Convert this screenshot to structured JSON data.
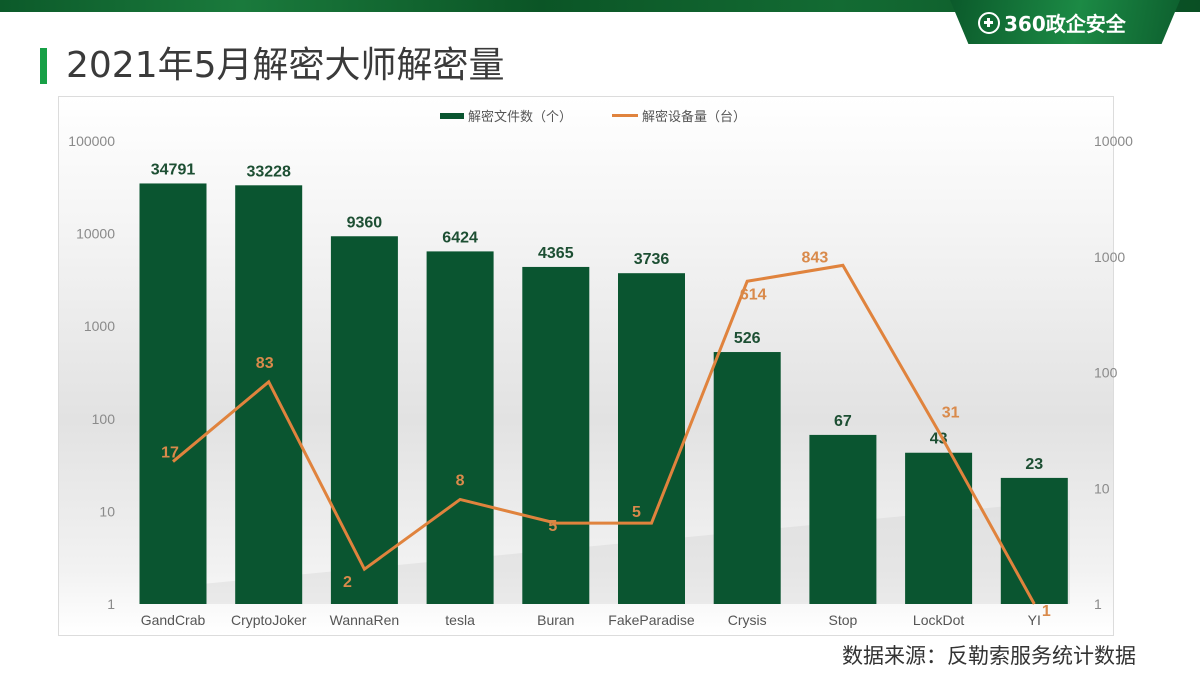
{
  "header": {
    "brand": "360政企安全",
    "title": "2021年5月解密大师解密量"
  },
  "footer": {
    "source": "数据来源：反勒索服务统计数据"
  },
  "colors": {
    "bar": "#0a5530",
    "line": "#e0833d",
    "bar_label": "#1d4f33",
    "line_label": "#d98a4b",
    "title_accent": "#17a046"
  },
  "chart_data": {
    "type": "bar",
    "title": "2021年5月解密大师解密量",
    "categories": [
      "GandCrab",
      "CryptoJoker",
      "WannaRen",
      "tesla",
      "Buran",
      "FakeParadise",
      "Crysis",
      "Stop",
      "LockDot",
      "YI"
    ],
    "series": [
      {
        "name": "解密文件数（个）",
        "type": "bar",
        "axis": "left",
        "values": [
          34791,
          33228,
          9360,
          6424,
          4365,
          3736,
          526,
          67,
          43,
          23
        ]
      },
      {
        "name": "解密设备量（台）",
        "type": "line",
        "axis": "right",
        "values": [
          17,
          83,
          2,
          8,
          5,
          5,
          614,
          843,
          31,
          1
        ]
      }
    ],
    "left_axis": {
      "scale": "log",
      "ticks": [
        "1",
        "10",
        "100",
        "1000",
        "10000",
        "100000"
      ],
      "ylim": [
        1,
        100000
      ]
    },
    "right_axis": {
      "scale": "log",
      "ticks": [
        "1",
        "10",
        "100",
        "1000",
        "10000"
      ],
      "ylim": [
        1,
        10000
      ]
    },
    "legend": {
      "position": "top",
      "entries": [
        "解密文件数（个）",
        "解密设备量（台）"
      ]
    },
    "grid": false,
    "xlabel": "",
    "ylabel": ""
  }
}
